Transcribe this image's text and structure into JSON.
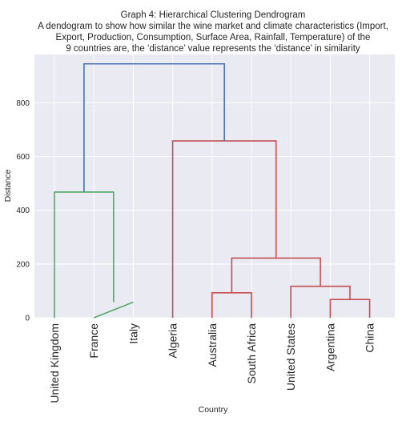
{
  "chart_data": {
    "type": "dendrogram",
    "title_lines": [
      "Graph 4: Hierarchical Clustering Dendrogram",
      "A dendogram to show how similar the wine market and climate characteristics (Import,",
      "Export, Production, Consumption, Surface Area, Rainfall, Temperature) of the",
      "9 countries are, the ‘distance’ value represents the ‘distance’ in similarity"
    ],
    "xlabel": "Country",
    "ylabel": "Distance",
    "ylim": [
      0,
      980
    ],
    "yticks": [
      0,
      200,
      400,
      600,
      800
    ],
    "grid": true,
    "leaves": [
      "United Kingdom",
      "France",
      "Italy",
      "Algeria",
      "Australia",
      "South Africa",
      "United States",
      "Argentina",
      "China"
    ],
    "links": [
      {
        "x": [
          1,
          2,
          2,
          1
        ],
        "y": [
          0,
          58,
          58,
          0
        ],
        "color": "#55a868"
      },
      {
        "x": [
          0,
          0,
          1.5,
          1.5
        ],
        "y": [
          0,
          468,
          468,
          58
        ],
        "color": "#55a868"
      },
      {
        "x": [
          4,
          4,
          5,
          5
        ],
        "y": [
          0,
          93,
          93,
          0
        ],
        "color": "#c44e52"
      },
      {
        "x": [
          7,
          7,
          8,
          8
        ],
        "y": [
          0,
          68,
          68,
          0
        ],
        "color": "#c44e52"
      },
      {
        "x": [
          6,
          6,
          7.5,
          7.5
        ],
        "y": [
          0,
          117,
          117,
          68
        ],
        "color": "#c44e52"
      },
      {
        "x": [
          4.5,
          4.5,
          6.75,
          6.75
        ],
        "y": [
          93,
          222,
          222,
          117
        ],
        "color": "#c44e52"
      },
      {
        "x": [
          3,
          3,
          5.625,
          5.625
        ],
        "y": [
          0,
          658,
          658,
          222
        ],
        "color": "#c44e52"
      },
      {
        "x": [
          0.75,
          0.75,
          4.3125,
          4.3125
        ],
        "y": [
          468,
          945,
          945,
          658
        ],
        "color": "#4c72b0"
      }
    ],
    "colors": {
      "plot_background": "#eaeaf2",
      "grid": "#ffffff",
      "text": "#262626"
    }
  }
}
